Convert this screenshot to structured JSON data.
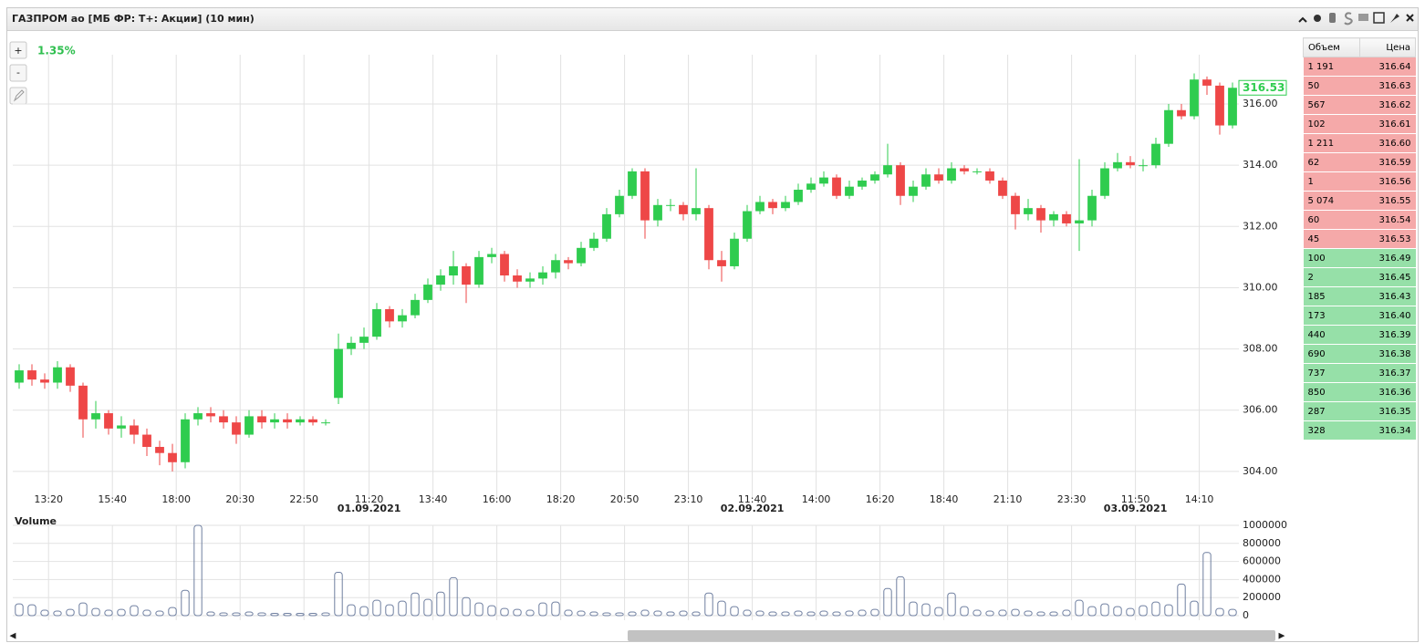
{
  "window_title": "ГАЗПРОМ ао [МБ ФР: Т+: Акции] (10 мин)",
  "controls": [
    "+",
    "-"
  ],
  "chart_data": [
    {
      "type": "candlestick",
      "annotation": "1.35%",
      "last_price": 316.53,
      "up_color": "#2fcc4f",
      "down_color": "#ee4747",
      "grid": true,
      "open": [
        306.9,
        307.3,
        307.0,
        306.9,
        307.4,
        306.8,
        305.7,
        305.9,
        305.4,
        305.5,
        305.2,
        304.8,
        304.6,
        304.3,
        305.7,
        305.9,
        305.8,
        305.6,
        305.2,
        305.8,
        305.6,
        305.7,
        305.6,
        305.7,
        305.6,
        306.4,
        308.0,
        308.2,
        308.4,
        309.3,
        308.9,
        309.1,
        309.6,
        310.1,
        310.4,
        310.7,
        310.1,
        311.0,
        311.1,
        310.4,
        310.2,
        310.3,
        310.5,
        310.9,
        310.8,
        311.3,
        311.6,
        312.4,
        313.0,
        313.8,
        312.2,
        312.7,
        312.7,
        312.4,
        312.6,
        310.9,
        310.7,
        311.6,
        312.5,
        312.8,
        312.6,
        312.8,
        313.2,
        313.4,
        313.6,
        313.0,
        313.3,
        313.5,
        313.7,
        314.0,
        313.0,
        313.3,
        313.7,
        313.5,
        313.9,
        313.8,
        313.8,
        313.5,
        313.0,
        312.4,
        312.6,
        312.2,
        312.4,
        312.1,
        312.2,
        313.0,
        313.9,
        314.1,
        314.0,
        314.0,
        314.7,
        315.8,
        315.6,
        316.8,
        316.6,
        315.3
      ],
      "high": [
        307.5,
        307.5,
        307.2,
        307.6,
        307.5,
        306.9,
        306.3,
        306.0,
        305.8,
        305.7,
        305.4,
        305.0,
        304.9,
        305.9,
        306.1,
        306.1,
        306.0,
        305.8,
        306.0,
        306.0,
        305.9,
        305.9,
        305.8,
        305.8,
        305.7,
        308.5,
        308.4,
        308.7,
        309.5,
        309.4,
        309.3,
        309.8,
        310.3,
        310.6,
        311.2,
        310.8,
        311.2,
        311.3,
        311.2,
        310.6,
        310.5,
        310.7,
        311.1,
        311.0,
        311.5,
        311.8,
        312.6,
        313.2,
        313.9,
        313.9,
        312.9,
        312.9,
        312.8,
        313.9,
        312.7,
        311.2,
        311.8,
        312.7,
        313.0,
        312.9,
        313.0,
        313.4,
        313.6,
        313.8,
        313.7,
        313.5,
        313.6,
        313.8,
        314.7,
        314.1,
        313.5,
        313.9,
        313.9,
        314.1,
        314.0,
        313.9,
        313.9,
        313.6,
        313.1,
        312.9,
        312.7,
        312.5,
        312.5,
        314.2,
        313.2,
        314.1,
        314.4,
        314.3,
        314.2,
        314.9,
        316.0,
        316.0,
        317.0,
        316.9,
        316.7,
        316.7
      ],
      "low": [
        306.7,
        306.8,
        306.7,
        306.7,
        306.6,
        305.1,
        305.4,
        305.2,
        305.1,
        304.9,
        304.5,
        304.2,
        304.0,
        304.1,
        305.5,
        305.6,
        305.4,
        304.9,
        305.1,
        305.4,
        305.4,
        305.4,
        305.5,
        305.5,
        305.5,
        306.2,
        307.8,
        308.0,
        308.3,
        308.7,
        308.7,
        309.0,
        309.5,
        309.9,
        310.1,
        309.5,
        310.0,
        310.8,
        310.2,
        310.0,
        310.0,
        310.1,
        310.3,
        310.6,
        310.7,
        311.2,
        311.5,
        312.3,
        312.9,
        311.6,
        312.0,
        312.5,
        312.2,
        312.2,
        310.6,
        310.2,
        310.6,
        311.5,
        312.4,
        312.4,
        312.5,
        312.7,
        313.1,
        313.3,
        312.9,
        312.9,
        313.2,
        313.4,
        313.6,
        312.7,
        312.8,
        313.2,
        313.4,
        313.4,
        313.7,
        313.7,
        313.4,
        312.9,
        311.9,
        312.2,
        311.8,
        312.0,
        312.0,
        311.2,
        312.0,
        312.9,
        313.8,
        313.9,
        313.8,
        313.9,
        314.6,
        315.5,
        315.5,
        316.3,
        315.0,
        315.2
      ],
      "close": [
        307.3,
        307.0,
        306.9,
        307.4,
        306.8,
        305.7,
        305.9,
        305.4,
        305.5,
        305.2,
        304.8,
        304.6,
        304.3,
        305.7,
        305.9,
        305.8,
        305.6,
        305.2,
        305.8,
        305.6,
        305.7,
        305.6,
        305.7,
        305.6,
        305.6,
        308.0,
        308.2,
        308.4,
        309.3,
        308.9,
        309.1,
        309.6,
        310.1,
        310.4,
        310.7,
        310.1,
        311.0,
        311.1,
        310.4,
        310.2,
        310.3,
        310.5,
        310.9,
        310.8,
        311.3,
        311.6,
        312.4,
        313.0,
        313.8,
        312.2,
        312.7,
        312.7,
        312.4,
        312.6,
        310.9,
        310.7,
        311.6,
        312.5,
        312.8,
        312.6,
        312.8,
        313.2,
        313.4,
        313.6,
        313.0,
        313.3,
        313.5,
        313.7,
        314.0,
        313.0,
        313.3,
        313.7,
        313.5,
        313.9,
        313.8,
        313.8,
        313.5,
        313.0,
        312.4,
        312.6,
        312.2,
        312.4,
        312.1,
        312.2,
        313.0,
        313.9,
        314.1,
        314.0,
        314.0,
        314.7,
        315.8,
        315.6,
        316.8,
        316.6,
        315.3,
        316.53
      ],
      "ylim": [
        303.31,
        317.61
      ],
      "yticks": [
        {
          "value": 304,
          "label": "304.00"
        },
        {
          "value": 306,
          "label": "306.00"
        },
        {
          "value": 308,
          "label": "308.00"
        },
        {
          "value": 310,
          "label": "310.00"
        },
        {
          "value": 312,
          "label": "312.00"
        },
        {
          "value": 314,
          "label": "314.00"
        },
        {
          "value": 316,
          "label": "316.00"
        }
      ],
      "xticks": [
        {
          "value": 2.3,
          "label": "13:20"
        },
        {
          "value": 7.3,
          "label": "15:40"
        },
        {
          "value": 12.3,
          "label": "18:00"
        },
        {
          "value": 17.3,
          "label": "20:30"
        },
        {
          "value": 22.3,
          "label": "22:50"
        },
        {
          "value": 27.4,
          "label": "11:20"
        },
        {
          "value": 32.4,
          "label": "13:40"
        },
        {
          "value": 37.4,
          "label": "16:00"
        },
        {
          "value": 42.4,
          "label": "18:20"
        },
        {
          "value": 47.4,
          "label": "20:50"
        },
        {
          "value": 52.4,
          "label": "23:10"
        },
        {
          "value": 57.4,
          "label": "11:40"
        },
        {
          "value": 62.4,
          "label": "14:00"
        },
        {
          "value": 67.4,
          "label": "16:20"
        },
        {
          "value": 72.4,
          "label": "18:40"
        },
        {
          "value": 77.4,
          "label": "21:10"
        },
        {
          "value": 82.4,
          "label": "23:30"
        },
        {
          "value": 87.4,
          "label": "11:50"
        },
        {
          "value": 92.4,
          "label": "14:10"
        }
      ],
      "xdates": [
        {
          "value": 27.4,
          "label": "01.09.2021"
        },
        {
          "value": 57.4,
          "label": "02.09.2021"
        },
        {
          "value": 87.4,
          "label": "03.09.2021"
        }
      ]
    },
    {
      "type": "bar",
      "title": "Volume",
      "color": "#6f7fa0",
      "grid": true,
      "values": [
        130000,
        120000,
        60000,
        50000,
        70000,
        140000,
        80000,
        60000,
        70000,
        110000,
        60000,
        50000,
        90000,
        280000,
        1000000,
        40000,
        30000,
        30000,
        40000,
        30000,
        25000,
        25000,
        25000,
        25000,
        30000,
        480000,
        120000,
        100000,
        170000,
        120000,
        160000,
        250000,
        180000,
        260000,
        420000,
        200000,
        140000,
        110000,
        80000,
        70000,
        60000,
        140000,
        150000,
        60000,
        50000,
        40000,
        30000,
        30000,
        40000,
        60000,
        50000,
        40000,
        50000,
        40000,
        250000,
        160000,
        100000,
        60000,
        50000,
        40000,
        40000,
        50000,
        40000,
        50000,
        40000,
        50000,
        60000,
        70000,
        300000,
        430000,
        150000,
        130000,
        90000,
        250000,
        100000,
        60000,
        50000,
        60000,
        70000,
        50000,
        40000,
        40000,
        60000,
        170000,
        100000,
        130000,
        100000,
        80000,
        110000,
        150000,
        120000,
        350000,
        160000,
        700000,
        80000,
        70000
      ],
      "ylim": [
        0,
        1000000
      ],
      "yticks": [
        0,
        200000,
        400000,
        600000,
        800000,
        1000000
      ]
    }
  ],
  "order_book": {
    "headers": [
      "Объем",
      "Цена"
    ],
    "asks": [
      [
        "1 191",
        "316.64"
      ],
      [
        "50",
        "316.63"
      ],
      [
        "567",
        "316.62"
      ],
      [
        "102",
        "316.61"
      ],
      [
        "1 211",
        "316.60"
      ],
      [
        "62",
        "316.59"
      ],
      [
        "1",
        "316.56"
      ],
      [
        "5 074",
        "316.55"
      ],
      [
        "60",
        "316.54"
      ],
      [
        "45",
        "316.53"
      ]
    ],
    "bids": [
      [
        "100",
        "316.49"
      ],
      [
        "2",
        "316.45"
      ],
      [
        "185",
        "316.43"
      ],
      [
        "173",
        "316.40"
      ],
      [
        "440",
        "316.39"
      ],
      [
        "690",
        "316.38"
      ],
      [
        "737",
        "316.37"
      ],
      [
        "850",
        "316.36"
      ],
      [
        "287",
        "316.35"
      ],
      [
        "328",
        "316.34"
      ]
    ]
  }
}
